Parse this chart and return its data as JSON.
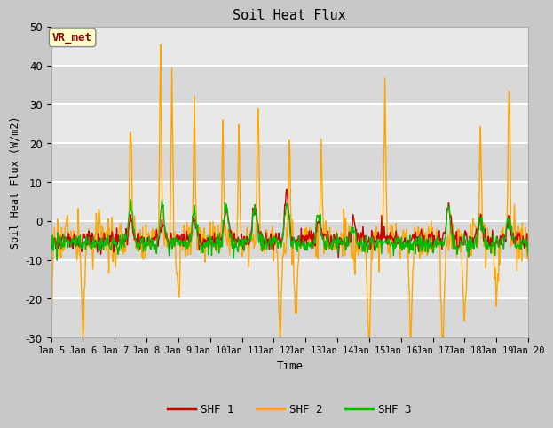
{
  "title": "Soil Heat Flux",
  "xlabel": "Time",
  "ylabel": "Soil Heat Flux (W/m2)",
  "ylim": [
    -30,
    50
  ],
  "yticks": [
    -30,
    -20,
    -10,
    0,
    10,
    20,
    30,
    40,
    50
  ],
  "xtick_labels": [
    "Jan 5",
    "Jan 6",
    "Jan 7",
    "Jan 8",
    "Jan 9",
    "Jan 10",
    "Jan 11",
    "Jan 12",
    "Jan 13",
    "Jan 14",
    "Jan 15",
    "Jan 16",
    "Jan 17",
    "Jan 18",
    "Jan 19",
    "Jan 20"
  ],
  "color_shf1": "#cc0000",
  "color_shf2": "#ffa500",
  "color_shf3": "#00bb00",
  "legend_labels": [
    "SHF 1",
    "SHF 2",
    "SHF 3"
  ],
  "annotation_text": "VR_met",
  "plot_bg_color": "#e8e8e8",
  "fig_bg_color": "#c8c8c8",
  "linewidth": 1.0,
  "n_points": 720
}
